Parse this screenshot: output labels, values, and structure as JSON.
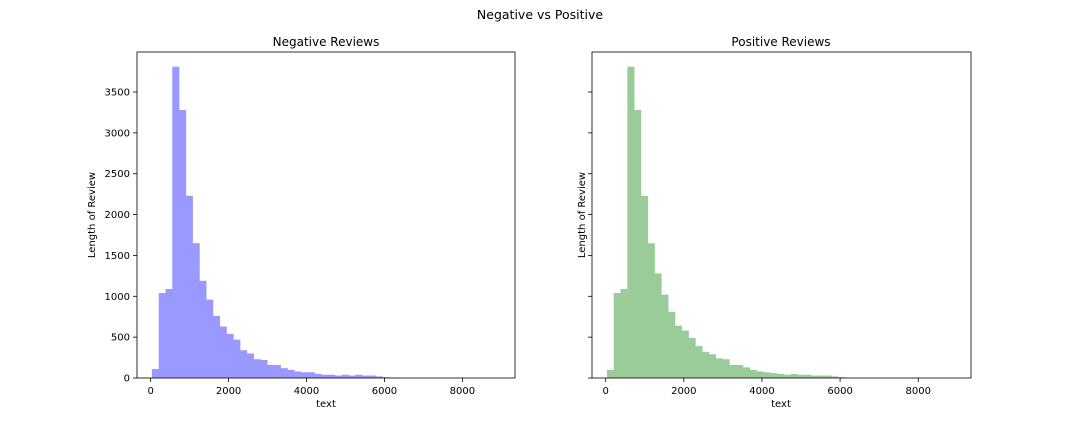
{
  "figure": {
    "suptitle": "Negative vs Positive"
  },
  "chart_data": [
    {
      "type": "bar",
      "title": "Negative Reviews",
      "xlabel": "text",
      "ylabel": "Length of Review",
      "color": "#9999ff",
      "xlim": [
        -350,
        9350
      ],
      "ylim": [
        0,
        3990
      ],
      "xticks": [
        0,
        2000,
        4000,
        6000,
        8000
      ],
      "yticks": [
        0,
        500,
        1000,
        1500,
        2000,
        2500,
        3000,
        3500
      ],
      "show_ytick_labels": true,
      "bin_width": 174,
      "bin_starts": [
        33,
        207,
        381,
        555,
        729,
        903,
        1077,
        1251,
        1425,
        1599,
        1773,
        1947,
        2121,
        2295,
        2469,
        2643,
        2817,
        2991,
        3165,
        3339,
        3513,
        3687,
        3861,
        4035,
        4209,
        4383,
        4557,
        4731,
        4905,
        5079,
        5253,
        5427,
        5601,
        5775,
        5949,
        6123
      ],
      "values": [
        110,
        1040,
        1090,
        3810,
        3280,
        2230,
        1650,
        1190,
        960,
        760,
        630,
        540,
        470,
        340,
        300,
        230,
        220,
        160,
        160,
        120,
        100,
        80,
        70,
        70,
        50,
        40,
        40,
        30,
        40,
        30,
        40,
        30,
        30,
        20,
        10,
        5
      ]
    },
    {
      "type": "bar",
      "title": "Positive Reviews",
      "xlabel": "text",
      "ylabel": "Length of Review",
      "color": "#99cc99",
      "xlim": [
        -350,
        9350
      ],
      "ylim": [
        0,
        3990
      ],
      "xticks": [
        0,
        2000,
        4000,
        6000,
        8000
      ],
      "yticks": [
        0,
        500,
        1000,
        1500,
        2000,
        2500,
        3000,
        3500
      ],
      "show_ytick_labels": false,
      "bin_width": 174,
      "bin_starts": [
        33,
        207,
        381,
        555,
        729,
        903,
        1077,
        1251,
        1425,
        1599,
        1773,
        1947,
        2121,
        2295,
        2469,
        2643,
        2817,
        2991,
        3165,
        3339,
        3513,
        3687,
        3861,
        4035,
        4209,
        4383,
        4557,
        4731,
        4905,
        5079,
        5253,
        5427,
        5601,
        5775,
        5949
      ],
      "values": [
        100,
        1040,
        1090,
        3810,
        3280,
        2230,
        1650,
        1280,
        1020,
        810,
        640,
        580,
        490,
        390,
        320,
        290,
        240,
        230,
        160,
        160,
        130,
        100,
        80,
        70,
        60,
        50,
        40,
        50,
        40,
        40,
        30,
        30,
        30,
        20,
        10
      ]
    }
  ]
}
